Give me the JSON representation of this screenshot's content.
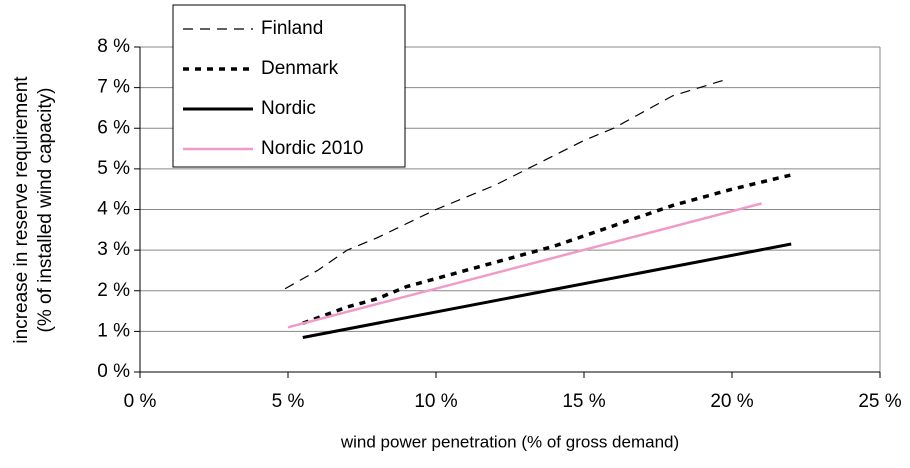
{
  "chart_data": {
    "type": "line",
    "xlabel": "wind power penetration (% of gross demand)",
    "ylabel": [
      "increase in reserve requirement",
      "(% of installed wind capacity)"
    ],
    "xlim": [
      0,
      25
    ],
    "ylim": [
      0,
      8
    ],
    "xticks": [
      {
        "value": 0,
        "label": "0 %"
      },
      {
        "value": 5,
        "label": "5 %"
      },
      {
        "value": 10,
        "label": "10 %"
      },
      {
        "value": 15,
        "label": "15 %"
      },
      {
        "value": 20,
        "label": "20 %"
      },
      {
        "value": 25,
        "label": "25 %"
      }
    ],
    "yticks": [
      {
        "value": 0,
        "label": "0 %"
      },
      {
        "value": 1,
        "label": "1 %"
      },
      {
        "value": 2,
        "label": "2 %"
      },
      {
        "value": 3,
        "label": "3 %"
      },
      {
        "value": 4,
        "label": "4 %"
      },
      {
        "value": 5,
        "label": "5 %"
      },
      {
        "value": 6,
        "label": "6 %"
      },
      {
        "value": 7,
        "label": "7 %"
      },
      {
        "value": 8,
        "label": "8 %"
      }
    ],
    "grid": true,
    "legend": "upper left",
    "series": [
      {
        "name": "Finland",
        "color": "#000000",
        "style": "dashed",
        "x": [
          4.9,
          6,
          7,
          8,
          10,
          12,
          15,
          16,
          18,
          19.8
        ],
        "values": [
          2.05,
          2.5,
          3,
          3.3,
          4,
          4.6,
          5.7,
          6,
          6.8,
          7.2
        ]
      },
      {
        "name": "Denmark",
        "color": "#000000",
        "style": "dotted",
        "x": [
          5.5,
          7,
          8,
          9,
          10,
          12,
          14,
          16,
          18,
          20,
          22
        ],
        "values": [
          1.2,
          1.6,
          1.8,
          2.1,
          2.3,
          2.7,
          3.1,
          3.6,
          4.1,
          4.5,
          4.85
        ]
      },
      {
        "name": "Nordic",
        "color": "#000000",
        "style": "solid",
        "x": [
          5.5,
          22
        ],
        "values": [
          0.85,
          3.15
        ]
      },
      {
        "name": "Nordic 2010",
        "color": "#f09ac8",
        "style": "solid",
        "x": [
          5,
          21
        ],
        "values": [
          1.1,
          4.15
        ]
      }
    ]
  }
}
